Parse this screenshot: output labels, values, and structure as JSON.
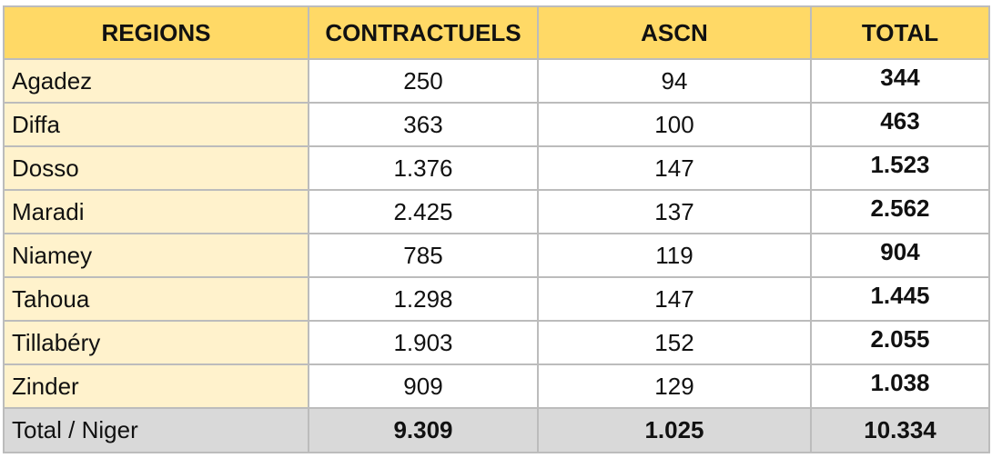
{
  "headers": {
    "regions": "REGIONS",
    "contractuels": "CONTRACTUELS",
    "ascn": "ASCN",
    "total": "TOTAL"
  },
  "rows": [
    {
      "region": "Agadez",
      "contractuels": "250",
      "ascn": "94",
      "total": "344"
    },
    {
      "region": "Diffa",
      "contractuels": "363",
      "ascn": "100",
      "total": "463"
    },
    {
      "region": "Dosso",
      "contractuels": "1.376",
      "ascn": "147",
      "total": "1.523"
    },
    {
      "region": "Maradi",
      "contractuels": "2.425",
      "ascn": "137",
      "total": "2.562"
    },
    {
      "region": "Niamey",
      "contractuels": "785",
      "ascn": "119",
      "total": "904"
    },
    {
      "region": "Tahoua",
      "contractuels": "1.298",
      "ascn": "147",
      "total": "1.445"
    },
    {
      "region": "Tillabéry",
      "contractuels": "1.903",
      "ascn": "152",
      "total": "2.055"
    },
    {
      "region": "Zinder",
      "contractuels": "909",
      "ascn": "129",
      "total": "1.038"
    }
  ],
  "footer": {
    "label": "Total / Niger",
    "contractuels": "9.309",
    "ascn": "1.025",
    "total": "10.334"
  },
  "colors": {
    "header_bg": "#ffd966",
    "region_col_bg": "#fff2cc",
    "footer_bg": "#d9d9d9",
    "border": "#bcbcbc"
  }
}
